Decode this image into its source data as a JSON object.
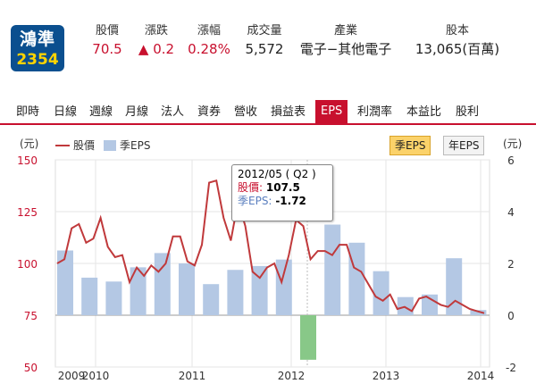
{
  "stock": {
    "name": "鴻準",
    "code": "2354"
  },
  "quote": {
    "fields": [
      {
        "key": "股價",
        "value": "70.5",
        "color": "red"
      },
      {
        "key": "漲跌",
        "value": "▲ 0.2",
        "color": "red"
      },
      {
        "key": "漲幅",
        "value": "0.28%",
        "color": "red"
      },
      {
        "key": "成交量",
        "value": "5,572",
        "color": ""
      },
      {
        "key": "產業",
        "value": "電子−其他電子",
        "color": ""
      },
      {
        "key": "股本",
        "value": "13,065(百萬)",
        "color": ""
      }
    ]
  },
  "tabs": [
    "即時",
    "日線",
    "週線",
    "月線",
    "法人",
    "資券",
    "營收",
    "損益表",
    "EPS",
    "利潤率",
    "本益比",
    "股利"
  ],
  "active_tab": "EPS",
  "toggle": {
    "quarterly": "季EPS",
    "yearly": "年EPS"
  },
  "tooltip": {
    "date": "2012/05 ( Q2 )",
    "price_label": "股價:",
    "price": "107.5",
    "eps_label": "季EPS:",
    "eps": "-1.72"
  },
  "colors": {
    "accent": "#c8102e",
    "bar": "#b4c8e4",
    "bar_negative": "#88c888",
    "line": "#c0393b"
  },
  "chart_data": {
    "type": "bar+line",
    "left_axis_unit": "(元)",
    "right_axis_unit": "(元)",
    "legend": [
      "股價",
      "季EPS"
    ],
    "left_ticks": [
      "150",
      "125",
      "100",
      "75",
      "50"
    ],
    "right_ticks": [
      "6",
      "4",
      "2",
      "0",
      "-2"
    ],
    "left_range": [
      50,
      150
    ],
    "right_range": [
      -2,
      6
    ],
    "x_labels": [
      "2009",
      "2010",
      "2011",
      "2012",
      "2013",
      "2014"
    ],
    "eps_quarters": [
      {
        "q": "2009Q4",
        "eps": 2.5
      },
      {
        "q": "2010Q1",
        "eps": 1.45
      },
      {
        "q": "2010Q2",
        "eps": 1.3
      },
      {
        "q": "2010Q3",
        "eps": 1.85
      },
      {
        "q": "2010Q4",
        "eps": 2.4
      },
      {
        "q": "2011Q1",
        "eps": 2.0
      },
      {
        "q": "2011Q2",
        "eps": 1.2
      },
      {
        "q": "2011Q3",
        "eps": 1.75
      },
      {
        "q": "2011Q4",
        "eps": 1.9
      },
      {
        "q": "2012Q1",
        "eps": 2.15
      },
      {
        "q": "2012Q2",
        "eps": -1.72
      },
      {
        "q": "2012Q3",
        "eps": 3.5
      },
      {
        "q": "2012Q4",
        "eps": 2.8
      },
      {
        "q": "2013Q1",
        "eps": 1.7
      },
      {
        "q": "2013Q2",
        "eps": 0.7
      },
      {
        "q": "2013Q3",
        "eps": 0.8
      },
      {
        "q": "2013Q4",
        "eps": 2.2
      },
      {
        "q": "2014Q1",
        "eps": 0.2
      }
    ],
    "price_monthly": [
      100,
      102,
      117,
      119,
      110,
      112,
      122,
      108,
      103,
      104,
      91,
      98,
      94,
      99,
      96,
      100,
      113,
      113,
      101,
      99,
      109,
      139,
      140,
      122,
      111,
      130,
      118,
      96,
      93,
      98,
      100,
      91,
      104,
      121,
      118,
      102,
      106,
      106,
      104,
      109,
      109,
      98,
      96,
      90,
      84,
      82,
      85,
      78,
      79,
      77,
      83,
      84,
      82,
      80,
      79,
      82,
      80,
      78,
      77,
      76
    ]
  }
}
